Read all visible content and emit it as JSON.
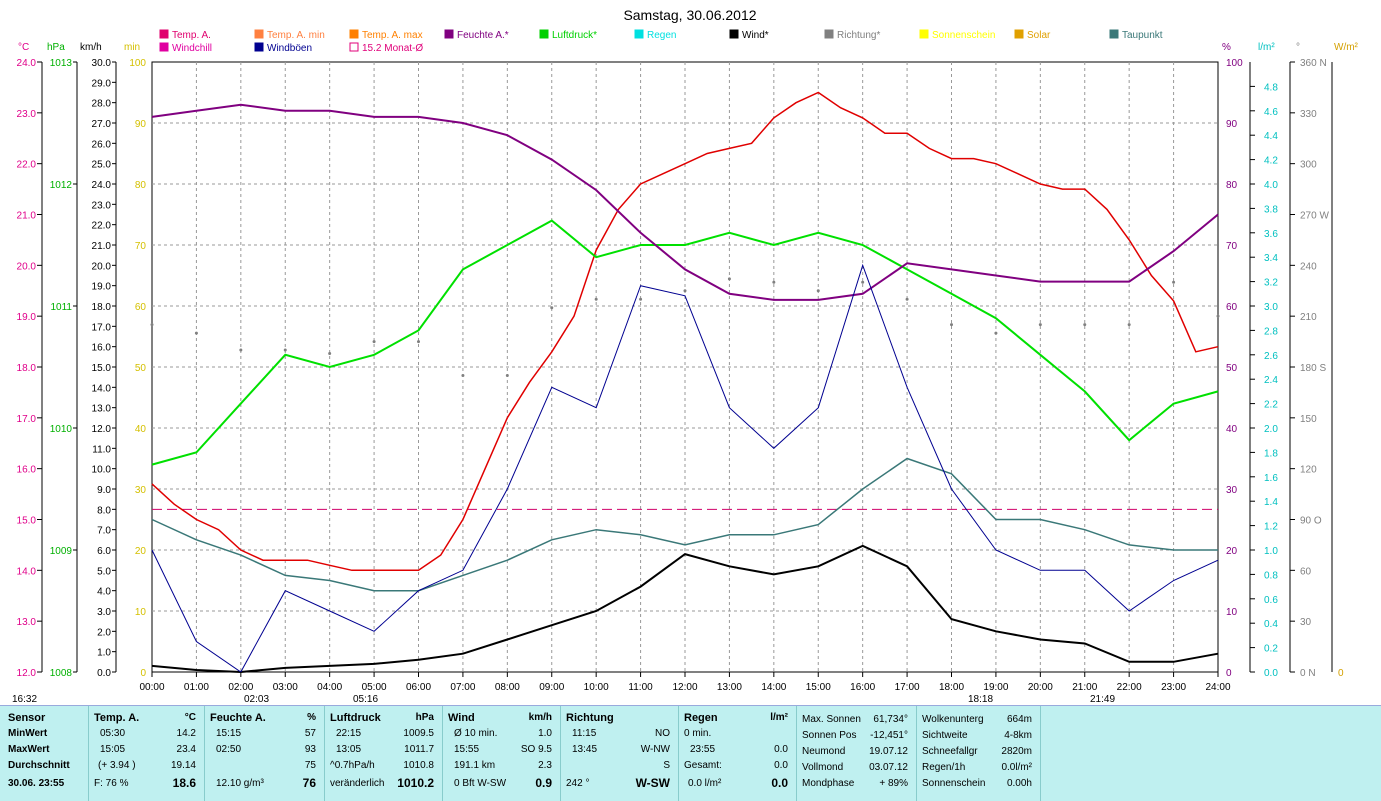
{
  "chart_data": {
    "type": "line",
    "title": "Samstag, 30.06.2012",
    "x_ticks": [
      "00:00",
      "01:00",
      "02:00",
      "03:00",
      "04:00",
      "05:00",
      "06:00",
      "07:00",
      "08:00",
      "09:00",
      "10:00",
      "11:00",
      "12:00",
      "13:00",
      "14:00",
      "15:00",
      "16:00",
      "17:00",
      "18:00",
      "19:00",
      "20:00",
      "21:00",
      "22:00",
      "23:00",
      "24:00"
    ],
    "axes": {
      "temp": {
        "unit": "°C",
        "ticks": [
          "24.0",
          "23.0",
          "22.0",
          "21.0",
          "20.0",
          "19.0",
          "18.0",
          "17.0",
          "16.0",
          "15.0",
          "14.0",
          "13.0",
          "12.0"
        ],
        "range": [
          12,
          24
        ],
        "color": "#e0008a"
      },
      "pressure": {
        "unit": "hPa",
        "ticks": [
          "1013",
          "1012",
          "1011",
          "1010",
          "1009",
          "1008"
        ],
        "range": [
          1008,
          1013
        ],
        "color": "#00b000"
      },
      "wind": {
        "unit": "km/h",
        "range": [
          0,
          30
        ],
        "ticks": [
          "30.0",
          "29.0",
          "28.0",
          "27.0",
          "26.0",
          "25.0",
          "24.0",
          "23.0",
          "22.0",
          "21.0",
          "20.0",
          "19.0",
          "18.0",
          "17.0",
          "16.0",
          "15.0",
          "14.0",
          "13.0",
          "12.0",
          "11.0",
          "10.0",
          "9.0",
          "8.0",
          "7.0",
          "6.0",
          "5.0",
          "4.0",
          "3.0",
          "2.0",
          "1.0",
          "0.0"
        ],
        "color": "#000000"
      },
      "min": {
        "unit": "min",
        "ticks": [
          "100",
          "90",
          "80",
          "70",
          "60",
          "50",
          "40",
          "30",
          "20",
          "10",
          "0"
        ],
        "range": [
          0,
          100
        ],
        "color": "#d4c000"
      },
      "humidity": {
        "unit": "%",
        "ticks": [
          "100",
          "90",
          "80",
          "70",
          "60",
          "50",
          "40",
          "30",
          "20",
          "10",
          "0"
        ],
        "range": [
          0,
          100
        ],
        "color": "#800080"
      },
      "rain": {
        "unit": "l/m²",
        "ticks": [
          "4.8",
          "4.6",
          "4.4",
          "4.2",
          "4.0",
          "3.8",
          "3.6",
          "3.4",
          "3.2",
          "3.0",
          "2.8",
          "2.6",
          "2.4",
          "2.2",
          "2.0",
          "1.8",
          "1.6",
          "1.4",
          "1.2",
          "1.0",
          "0.8",
          "0.6",
          "0.4",
          "0.2",
          "0.0"
        ],
        "range": [
          0,
          5
        ],
        "color": "#00c0c0"
      },
      "direction": {
        "unit": "°",
        "ticks": [
          "360 N",
          "330",
          "300",
          "270 W",
          "240",
          "210",
          "180 S",
          "150",
          "120",
          "90 O",
          "60",
          "30",
          "0 N"
        ],
        "range": [
          0,
          360
        ],
        "color": "#808080"
      },
      "solar": {
        "unit": "W/m²",
        "ticks": [
          "0"
        ],
        "color": "#d4a000"
      }
    },
    "legend": [
      {
        "label": "Temp. A.",
        "color": "#e0006e"
      },
      {
        "label": "Temp. A. min",
        "color": "#ff8040"
      },
      {
        "label": "Temp. A. max",
        "color": "#ff8000"
      },
      {
        "label": "Feuchte A.*",
        "color": "#800080"
      },
      {
        "label": "Luftdruck*",
        "color": "#00d000"
      },
      {
        "label": "Regen",
        "color": "#00e0e0"
      },
      {
        "label": "Wind*",
        "color": "#000000"
      },
      {
        "label": "Richtung*",
        "color": "#808080"
      },
      {
        "label": "Sonnenschein",
        "color": "#ffff00"
      },
      {
        "label": "Solar",
        "color": "#e0a000"
      },
      {
        "label": "Taupunkt",
        "color": "#3a7878"
      },
      {
        "label": "Windchill",
        "color": "#e000a0"
      },
      {
        "label": "Windböen",
        "color": "#000090"
      },
      {
        "label": "15.2 Monat-Ø",
        "color": "#e0007a"
      }
    ],
    "monthly_avg_temp": 15.2,
    "series": [
      {
        "name": "Temp. A.",
        "unit": "°C",
        "x": [
          0,
          0.5,
          1,
          1.5,
          2,
          2.5,
          3,
          3.5,
          4,
          4.5,
          5,
          5.5,
          6,
          6.5,
          7,
          7.5,
          8,
          8.5,
          9,
          9.5,
          10,
          10.5,
          11,
          11.5,
          12,
          12.5,
          13,
          13.5,
          14,
          14.5,
          15,
          15.5,
          16,
          16.5,
          17,
          17.5,
          18,
          18.5,
          19,
          19.5,
          20,
          20.5,
          21,
          21.5,
          22,
          22.5,
          23,
          23.5,
          24
        ],
        "y": [
          15.7,
          15.3,
          15.0,
          14.8,
          14.4,
          14.2,
          14.2,
          14.2,
          14.1,
          14.0,
          14.0,
          14.0,
          14.0,
          14.3,
          15.0,
          16.0,
          17.0,
          17.7,
          18.3,
          19.0,
          20.3,
          21.1,
          21.6,
          21.8,
          22.0,
          22.2,
          22.3,
          22.4,
          22.9,
          23.2,
          23.4,
          23.1,
          22.9,
          22.6,
          22.6,
          22.3,
          22.1,
          22.1,
          22.0,
          21.8,
          21.6,
          21.5,
          21.5,
          21.1,
          20.5,
          19.8,
          19.3,
          18.3,
          18.4
        ]
      },
      {
        "name": "Luftdruck*",
        "unit": "hPa",
        "x": [
          0,
          1,
          2,
          3,
          4,
          5,
          6,
          7,
          8,
          9,
          10,
          11,
          12,
          13,
          14,
          15,
          16,
          17,
          18,
          19,
          20,
          21,
          22,
          23,
          24
        ],
        "y": [
          1009.7,
          1009.8,
          1010.2,
          1010.6,
          1010.5,
          1010.6,
          1010.8,
          1011.3,
          1011.5,
          1011.7,
          1011.4,
          1011.5,
          1011.5,
          1011.6,
          1011.5,
          1011.6,
          1011.5,
          1011.3,
          1011.1,
          1010.9,
          1010.6,
          1010.3,
          1009.9,
          1010.2,
          1010.3
        ]
      },
      {
        "name": "Feuchte A.*",
        "unit": "%",
        "x": [
          0,
          1,
          2,
          3,
          4,
          5,
          6,
          7,
          8,
          9,
          10,
          11,
          12,
          13,
          14,
          15,
          16,
          17,
          18,
          19,
          20,
          21,
          22,
          23,
          24
        ],
        "y": [
          91,
          92,
          93,
          92,
          92,
          91,
          91,
          90,
          88,
          84,
          79,
          72,
          66,
          62,
          61,
          61,
          62,
          67,
          66,
          65,
          64,
          64,
          64,
          69,
          75
        ]
      },
      {
        "name": "Taupunkt",
        "unit": "°C",
        "x": [
          0,
          1,
          2,
          3,
          4,
          5,
          6,
          7,
          8,
          9,
          10,
          11,
          12,
          13,
          14,
          15,
          16,
          17,
          18,
          19,
          20,
          21,
          22,
          23,
          24
        ],
        "y": [
          15.0,
          14.6,
          14.3,
          13.9,
          13.8,
          13.6,
          13.6,
          13.9,
          14.2,
          14.6,
          14.8,
          14.7,
          14.5,
          14.7,
          14.7,
          14.9,
          15.6,
          16.2,
          15.9,
          15.0,
          15.0,
          14.8,
          14.5,
          14.4,
          14.4
        ]
      },
      {
        "name": "Wind*",
        "unit": "km/h",
        "x": [
          0,
          1,
          2,
          3,
          4,
          5,
          6,
          7,
          8,
          9,
          10,
          11,
          12,
          13,
          14,
          15,
          16,
          17,
          18,
          19,
          20,
          21,
          22,
          23,
          24
        ],
        "y": [
          0.3,
          0.1,
          0,
          0.2,
          0.3,
          0.4,
          0.6,
          0.9,
          1.6,
          2.3,
          3.0,
          4.2,
          5.8,
          5.2,
          4.8,
          5.2,
          6.2,
          5.2,
          2.6,
          2.0,
          1.6,
          1.4,
          0.5,
          0.5,
          0.9
        ]
      },
      {
        "name": "Windböen",
        "unit": "km/h",
        "x": [
          0,
          1,
          2,
          3,
          4,
          5,
          6,
          7,
          8,
          9,
          10,
          11,
          12,
          13,
          14,
          15,
          16,
          17,
          18,
          19,
          20,
          21,
          22,
          23,
          24
        ],
        "y": [
          6.0,
          1.5,
          0,
          4.0,
          3.0,
          2.0,
          4.0,
          5.0,
          9.0,
          14.0,
          13.0,
          19.0,
          18.5,
          13.0,
          11.0,
          13.0,
          20.0,
          14.0,
          9.0,
          6.0,
          5.0,
          5.0,
          3.0,
          4.5,
          5.5
        ]
      },
      {
        "name": "Richtung*",
        "unit": "°",
        "x": [
          0,
          1,
          2,
          3,
          4,
          5,
          6,
          7,
          8,
          9,
          10,
          11,
          12,
          13,
          14,
          15,
          16,
          17,
          18,
          19,
          20,
          21,
          22,
          23,
          24
        ],
        "y": [
          205,
          200,
          190,
          190,
          188,
          195,
          195,
          175,
          175,
          215,
          220,
          220,
          225,
          232,
          230,
          225,
          230,
          220,
          205,
          200,
          205,
          205,
          205,
          230,
          210
        ]
      }
    ]
  },
  "x_markers": {
    "sunrise": "05:16",
    "sunset": "21:49",
    "left_time": "16:32",
    "marker1": "02:03",
    "marker2": "18:18"
  },
  "panel": {
    "sensor": {
      "header": "Sensor",
      "rows": [
        "MinWert",
        "MaxWert",
        "Durchschnitt"
      ],
      "date": "30.06. 23:55"
    },
    "temp": {
      "header": "Temp. A.",
      "unit": "°C",
      "min_time": "05:30",
      "min_val": "14.2",
      "max_time": "15:05",
      "max_val": "23.4",
      "avg_note": "(+ 3.94 )",
      "avg_val": "19.14",
      "f_label": "F: 76 %",
      "current": "18.6"
    },
    "humidity": {
      "header": "Feuchte A.",
      "unit": "%",
      "min_time": "15:15",
      "min_val": "57",
      "max_time": "02:50",
      "max_val": "93",
      "avg_val": "75",
      "abs": "12.10 g/m³",
      "current": "76"
    },
    "pressure": {
      "header": "Luftdruck",
      "unit": "hPa",
      "min_time": "22:15",
      "min_val": "1009.5",
      "max_time": "13:05",
      "max_val": "1011.7",
      "trend": "^0.7hPa/h",
      "avg_val": "1010.8",
      "state": "veränderlich",
      "current": "1010.2"
    },
    "wind": {
      "header": "Wind",
      "unit": "km/h",
      "r1a": "Ø 10 min.",
      "r1b": "1.0",
      "r2a": "15:55",
      "r2b": "SO 9.5",
      "r3a": "191.1 km",
      "r3b": "2.3",
      "r4a": "0 Bft W-SW",
      "r4b": "0.9"
    },
    "direction": {
      "header": "Richtung",
      "r1a": "11:15",
      "r1b": "NO",
      "r2a": "13:45",
      "r2b": "W-NW",
      "r3b": "S",
      "r4a": "242 °",
      "r4b": "W-SW"
    },
    "rain": {
      "header": "Regen",
      "unit": "l/m²",
      "r1a": "0 min.",
      "r2a": "23:55",
      "r2b": "0.0",
      "r3a": "Gesamt:",
      "r3b": "0.0",
      "r4a": "0.0 l/m²",
      "r4b": "0.0"
    },
    "astro": {
      "r1a": "Max. Sonnen",
      "r1b": "61,734°",
      "r2a": "Sonnen Pos",
      "r2b": "-12,451°",
      "r3a": "Neumond",
      "r3b": "19.07.12",
      "r4a": "Vollmond",
      "r4b": "03.07.12",
      "r5a": "Mondphase",
      "r5b": "+ 89%"
    },
    "misc": {
      "r1a": "Wolkenunterg",
      "r1b": "664m",
      "r2a": "Sichtweite",
      "r2b": "4-8km",
      "r3a": "Schneefallgr",
      "r3b": "2820m",
      "r4a": "Regen/1h",
      "r4b": "0.0l/m²",
      "r5a": "Sonnenschein",
      "r5b": "0.00h"
    }
  }
}
